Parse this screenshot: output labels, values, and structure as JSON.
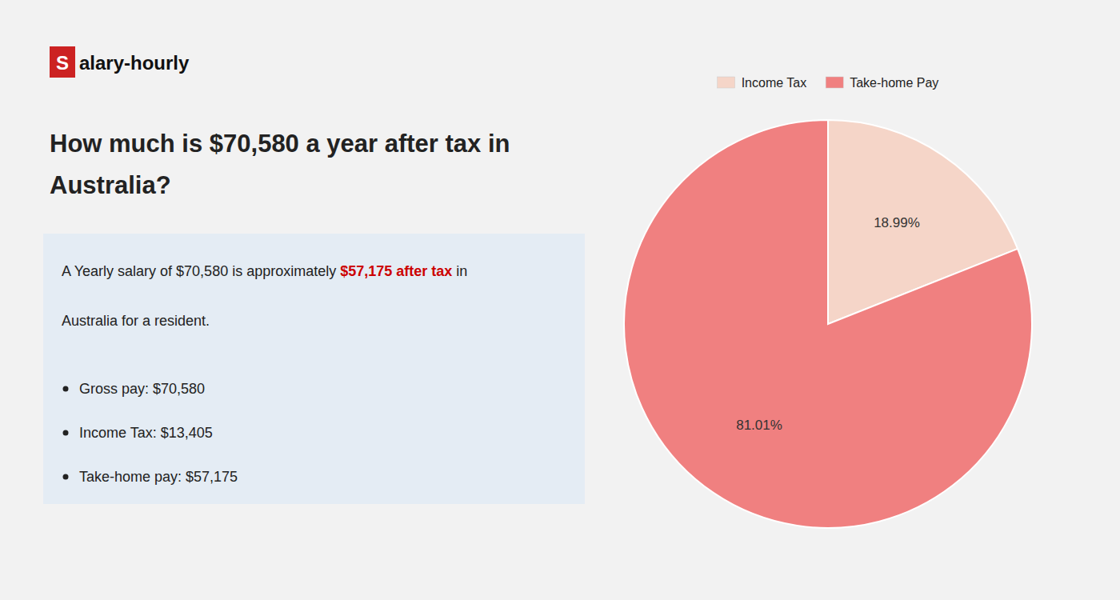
{
  "chart_data": {
    "type": "pie",
    "title": "How much is $70,580 a year after tax in Australia?",
    "categories": [
      "Income Tax",
      "Take-home Pay"
    ],
    "values": [
      18.99,
      81.01
    ],
    "value_labels": [
      "18.99%",
      "81.01%"
    ],
    "data_labels": true,
    "colors": [
      "#f5d5c8",
      "#f08080"
    ],
    "legend": "top",
    "annotations": [
      "S",
      "alary-hourly",
      "A Yearly salary of $70,580 is approximately ",
      "$57,175 after tax",
      " in",
      "Australia for a resident.",
      "Gross pay: $70,580",
      "Income Tax: $13,405",
      "Take-home pay: $57,175"
    ]
  }
}
